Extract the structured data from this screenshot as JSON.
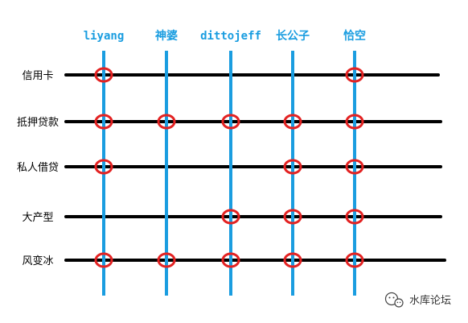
{
  "columns": [
    {
      "id": "liyang",
      "label": "liyang"
    },
    {
      "id": "shenpo",
      "label": "神婆"
    },
    {
      "id": "dittojeff",
      "label": "dittojeff"
    },
    {
      "id": "changgongzi",
      "label": "长公子"
    },
    {
      "id": "qiakong",
      "label": "恰空"
    }
  ],
  "rows": [
    {
      "id": "xinyongka",
      "label": "信用卡",
      "marks": [
        true,
        false,
        false,
        false,
        true
      ]
    },
    {
      "id": "diyadaikuan",
      "label": "抵押贷款",
      "marks": [
        true,
        true,
        true,
        true,
        true
      ]
    },
    {
      "id": "sirenjiedai",
      "label": "私人借贷",
      "marks": [
        true,
        false,
        false,
        true,
        true
      ]
    },
    {
      "id": "dachanxing",
      "label": "大产型",
      "marks": [
        false,
        false,
        true,
        true,
        true
      ]
    },
    {
      "id": "fengbianbing",
      "label": "风变冰",
      "marks": [
        true,
        true,
        true,
        true,
        true
      ]
    }
  ],
  "colors": {
    "column_line": "#1a9de0",
    "row_line": "#000000",
    "marker": "#e32222",
    "column_label": "#1a9de0",
    "row_label": "#000000",
    "watermark": "#333333"
  },
  "watermark": {
    "text": "水库论坛",
    "icon": "wechat-icon"
  }
}
